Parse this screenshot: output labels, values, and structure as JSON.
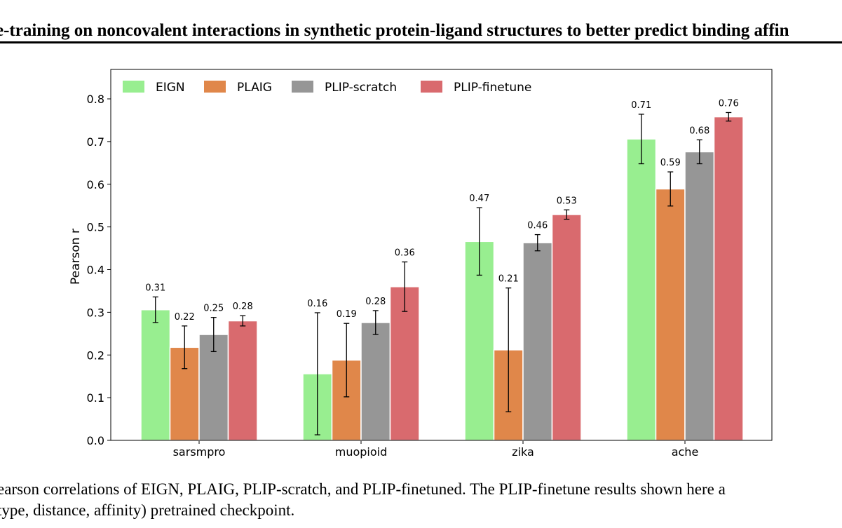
{
  "header": {
    "title": "e-training on noncovalent interactions in synthetic protein-ligand structures to better predict binding affin"
  },
  "chart_data": {
    "type": "bar",
    "ylabel": "Pearson r",
    "categories": [
      "sarsmpro",
      "muopioid",
      "zika",
      "ache"
    ],
    "series": [
      {
        "name": "EIGN",
        "color": "#98ee90",
        "values": [
          0.306,
          0.156,
          0.466,
          0.706
        ],
        "value_labels": [
          "0.31",
          "0.16",
          "0.47",
          "0.71"
        ],
        "errors": [
          0.03,
          0.143,
          0.079,
          0.058
        ]
      },
      {
        "name": "PLAIG",
        "color": "#e0874a",
        "values": [
          0.218,
          0.188,
          0.212,
          0.589
        ],
        "value_labels": [
          "0.22",
          "0.19",
          "0.21",
          "0.59"
        ],
        "errors": [
          0.05,
          0.086,
          0.145,
          0.04
        ]
      },
      {
        "name": "PLIP-scratch",
        "color": "#969696",
        "values": [
          0.248,
          0.276,
          0.463,
          0.676
        ],
        "value_labels": [
          "0.25",
          "0.28",
          "0.46",
          "0.68"
        ],
        "errors": [
          0.04,
          0.028,
          0.019,
          0.028
        ]
      },
      {
        "name": "PLIP-finetune",
        "color": "#d96a6e",
        "values": [
          0.28,
          0.36,
          0.529,
          0.758
        ],
        "value_labels": [
          "0.28",
          "0.36",
          "0.53",
          "0.76"
        ],
        "errors": [
          0.012,
          0.058,
          0.011,
          0.01
        ]
      }
    ],
    "ylim": [
      0,
      0.869
    ],
    "yticks": [
      {
        "value": 0,
        "label": "0.0"
      },
      0.1,
      0.2,
      0.3,
      0.4,
      0.5,
      0.6,
      0.7,
      0.8
    ],
    "legend": "upper left"
  },
  "caption": {
    "lines": [
      "earson correlations of EIGN, PLAIG, PLIP-scratch, and PLIP-finetuned. The PLIP-finetune results shown here a",
      "type, distance, affinity) pretrained checkpoint."
    ]
  }
}
